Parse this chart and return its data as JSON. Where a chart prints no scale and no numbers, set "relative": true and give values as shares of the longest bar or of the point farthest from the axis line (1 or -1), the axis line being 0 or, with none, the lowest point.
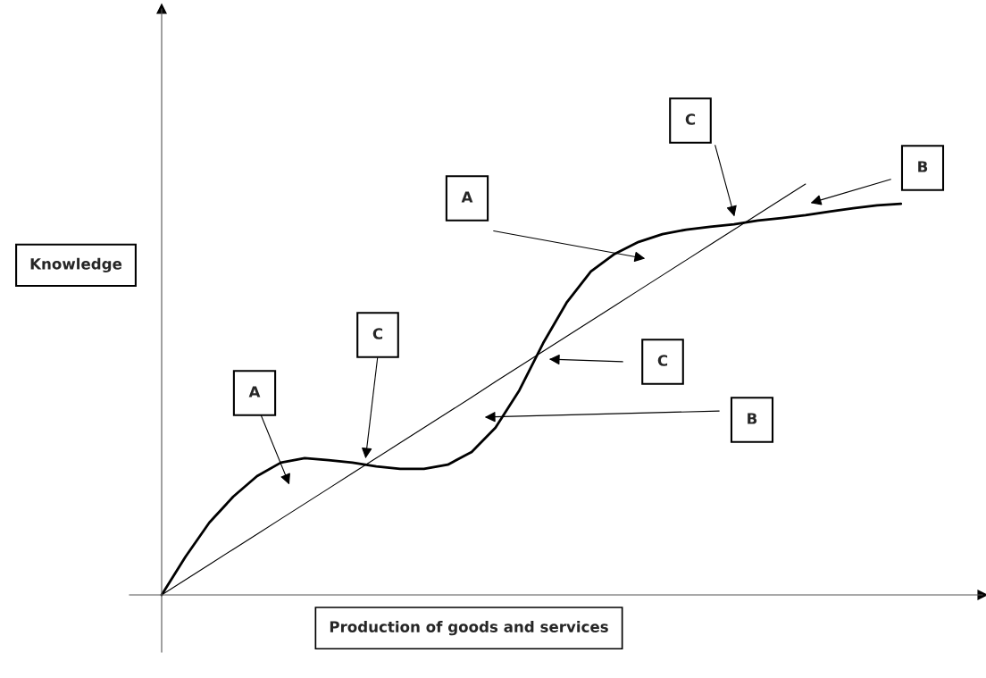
{
  "chart_data": {
    "type": "line",
    "relative": true,
    "xlabel": "Production of goods and services",
    "ylabel": "Knowledge",
    "categories": [
      null,
      null,
      null,
      null,
      null,
      null,
      null,
      null,
      null,
      null,
      null,
      null,
      null,
      null,
      null,
      null,
      null,
      null,
      null,
      null,
      null,
      null,
      null,
      null,
      null,
      null,
      null,
      null,
      null,
      null,
      null,
      null
    ],
    "series": [
      {
        "color": "#000000",
        "values": [
          0,
          0.093,
          0.176,
          0.239,
          0.289,
          0.322,
          0.333,
          0.328,
          0.322,
          0.313,
          0.307,
          0.307,
          0.317,
          0.348,
          0.407,
          0.498,
          0.613,
          0.713,
          0.787,
          0.83,
          0.859,
          0.878,
          0.889,
          0.896,
          0.902,
          0.911,
          0.917,
          0.924,
          0.933,
          0.941,
          0.948,
          0.952
        ]
      },
      {
        "color": "#000000",
        "line_style": "solid",
        "values": [
          0,
          0.037,
          0.074,
          0.111,
          0.148,
          0.185,
          0.222,
          0.259,
          0.296,
          0.333,
          0.37,
          0.407,
          0.444,
          0.481,
          0.519,
          0.556,
          0.593,
          0.63,
          0.667,
          0.704,
          0.741,
          0.778,
          0.815,
          0.852,
          0.889,
          0.926,
          0.963,
          1,
          null,
          null,
          null,
          null
        ]
      }
    ],
    "annotations": [
      "A",
      "C",
      "A",
      "C",
      "B",
      "C",
      "B"
    ],
    "grid": false,
    "legend": false,
    "marker": "none"
  }
}
